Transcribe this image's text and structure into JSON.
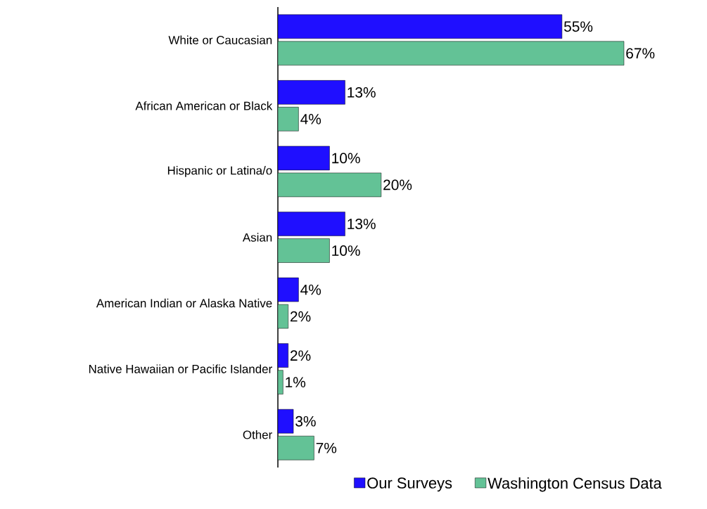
{
  "chart_data": {
    "type": "bar",
    "orientation": "horizontal",
    "categories": [
      "White or Caucasian",
      "African American or Black",
      "Hispanic or Latina/o",
      "Asian",
      "American Indian or Alaska Native",
      "Native Hawaiian or Pacific Islander",
      "Other"
    ],
    "series": [
      {
        "name": "Our Surveys",
        "color": "#1f0fff",
        "values": [
          55,
          13,
          10,
          13,
          4,
          2,
          3
        ],
        "value_labels": [
          "55%",
          "13%",
          "10%",
          "13%",
          "4%",
          "2%",
          "3%"
        ]
      },
      {
        "name": "Washington Census Data",
        "color": "#63c296",
        "values": [
          67,
          4,
          20,
          10,
          2,
          1,
          7
        ],
        "value_labels": [
          "67%",
          "4%",
          "20%",
          "10%",
          "2%",
          "1%",
          "7%"
        ]
      }
    ],
    "legend": "bottom right"
  }
}
